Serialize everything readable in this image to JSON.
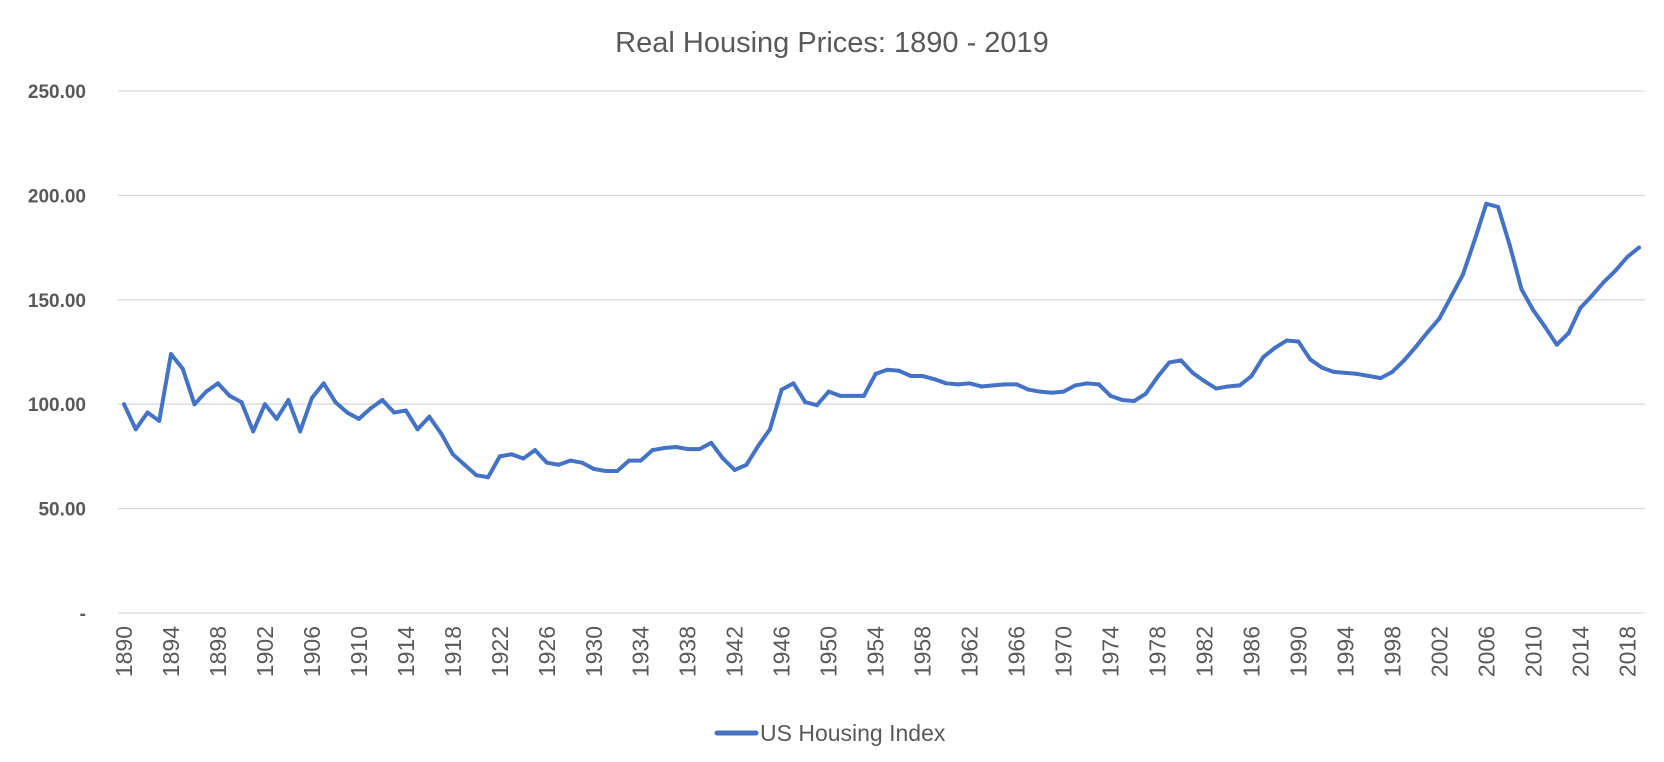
{
  "chart_data": {
    "type": "line",
    "title": "Real Housing Prices: 1890 - 2019",
    "xlabel": "",
    "ylabel": "",
    "ylim": [
      0,
      250
    ],
    "yticks": [
      0,
      50,
      100,
      150,
      200,
      250
    ],
    "ytick_labels": [
      "-",
      "50.00",
      "100.00",
      "150.00",
      "200.00",
      "250.00"
    ],
    "xticks": [
      1890,
      1894,
      1898,
      1902,
      1906,
      1910,
      1914,
      1918,
      1922,
      1926,
      1930,
      1934,
      1938,
      1942,
      1946,
      1950,
      1954,
      1958,
      1962,
      1966,
      1970,
      1974,
      1978,
      1982,
      1986,
      1990,
      1994,
      1998,
      2002,
      2006,
      2010,
      2014,
      2018
    ],
    "xtick_labels": [
      "1890",
      "1894",
      "1898",
      "1902",
      "1906",
      "1910",
      "1914",
      "1918",
      "1922",
      "1926",
      "1930",
      "1934",
      "1938",
      "1942",
      "1946",
      "1950",
      "1954",
      "1958",
      "1962",
      "1966",
      "1970",
      "1974",
      "1978",
      "1982",
      "1986",
      "1990",
      "1994",
      "1998",
      "2002",
      "2006",
      "2010",
      "2014",
      "2018"
    ],
    "grid": true,
    "legend_position": "bottom",
    "series": [
      {
        "name": "US Housing Index",
        "color": "#4472c4",
        "x": [
          1890,
          1891,
          1892,
          1893,
          1894,
          1895,
          1896,
          1897,
          1898,
          1899,
          1900,
          1901,
          1902,
          1903,
          1904,
          1905,
          1906,
          1907,
          1908,
          1909,
          1910,
          1911,
          1912,
          1913,
          1914,
          1915,
          1916,
          1917,
          1918,
          1919,
          1920,
          1921,
          1922,
          1923,
          1924,
          1925,
          1926,
          1927,
          1928,
          1929,
          1930,
          1931,
          1932,
          1933,
          1934,
          1935,
          1936,
          1937,
          1938,
          1939,
          1940,
          1941,
          1942,
          1943,
          1944,
          1945,
          1946,
          1947,
          1948,
          1949,
          1950,
          1951,
          1952,
          1953,
          1954,
          1955,
          1956,
          1957,
          1958,
          1959,
          1960,
          1961,
          1962,
          1963,
          1964,
          1965,
          1966,
          1967,
          1968,
          1969,
          1970,
          1971,
          1972,
          1973,
          1974,
          1975,
          1976,
          1977,
          1978,
          1979,
          1980,
          1981,
          1982,
          1983,
          1984,
          1985,
          1986,
          1987,
          1988,
          1989,
          1990,
          1991,
          1992,
          1993,
          1994,
          1995,
          1996,
          1997,
          1998,
          1999,
          2000,
          2001,
          2002,
          2003,
          2004,
          2005,
          2006,
          2007,
          2008,
          2009,
          2010,
          2011,
          2012,
          2013,
          2014,
          2015,
          2016,
          2017,
          2018,
          2019
        ],
        "values": [
          100,
          88,
          96,
          92,
          124,
          117,
          100,
          106,
          110,
          104,
          101,
          87,
          100,
          93,
          102,
          87,
          103,
          110,
          101,
          96,
          93,
          98,
          102,
          96,
          97,
          88,
          94,
          86,
          76,
          71,
          66,
          65,
          75,
          76,
          74,
          78,
          72,
          71,
          73,
          72,
          69,
          68,
          68,
          73,
          73,
          78,
          79,
          79.5,
          78.5,
          78.5,
          81.5,
          74,
          68.5,
          71,
          80,
          88,
          107,
          110,
          101,
          99.5,
          106,
          104,
          104,
          104,
          114.5,
          116.5,
          116,
          113.5,
          113.5,
          112,
          110,
          109.5,
          110,
          108.5,
          109,
          109.5,
          109.5,
          107,
          106,
          105.5,
          106,
          109,
          110,
          109.5,
          104,
          102,
          101.5,
          105,
          113,
          120,
          121,
          115,
          111,
          107.5,
          108.5,
          109,
          113.5,
          122.5,
          127,
          130.5,
          130,
          121.5,
          117.5,
          115.5,
          115,
          114.5,
          113.5,
          112.5,
          115.5,
          121,
          127.5,
          134.5,
          141,
          151.5,
          162,
          178.5,
          196,
          194.5,
          176,
          155,
          145,
          137,
          128.5,
          134,
          146,
          152,
          158.5,
          164,
          170.5,
          175
        ]
      }
    ]
  }
}
